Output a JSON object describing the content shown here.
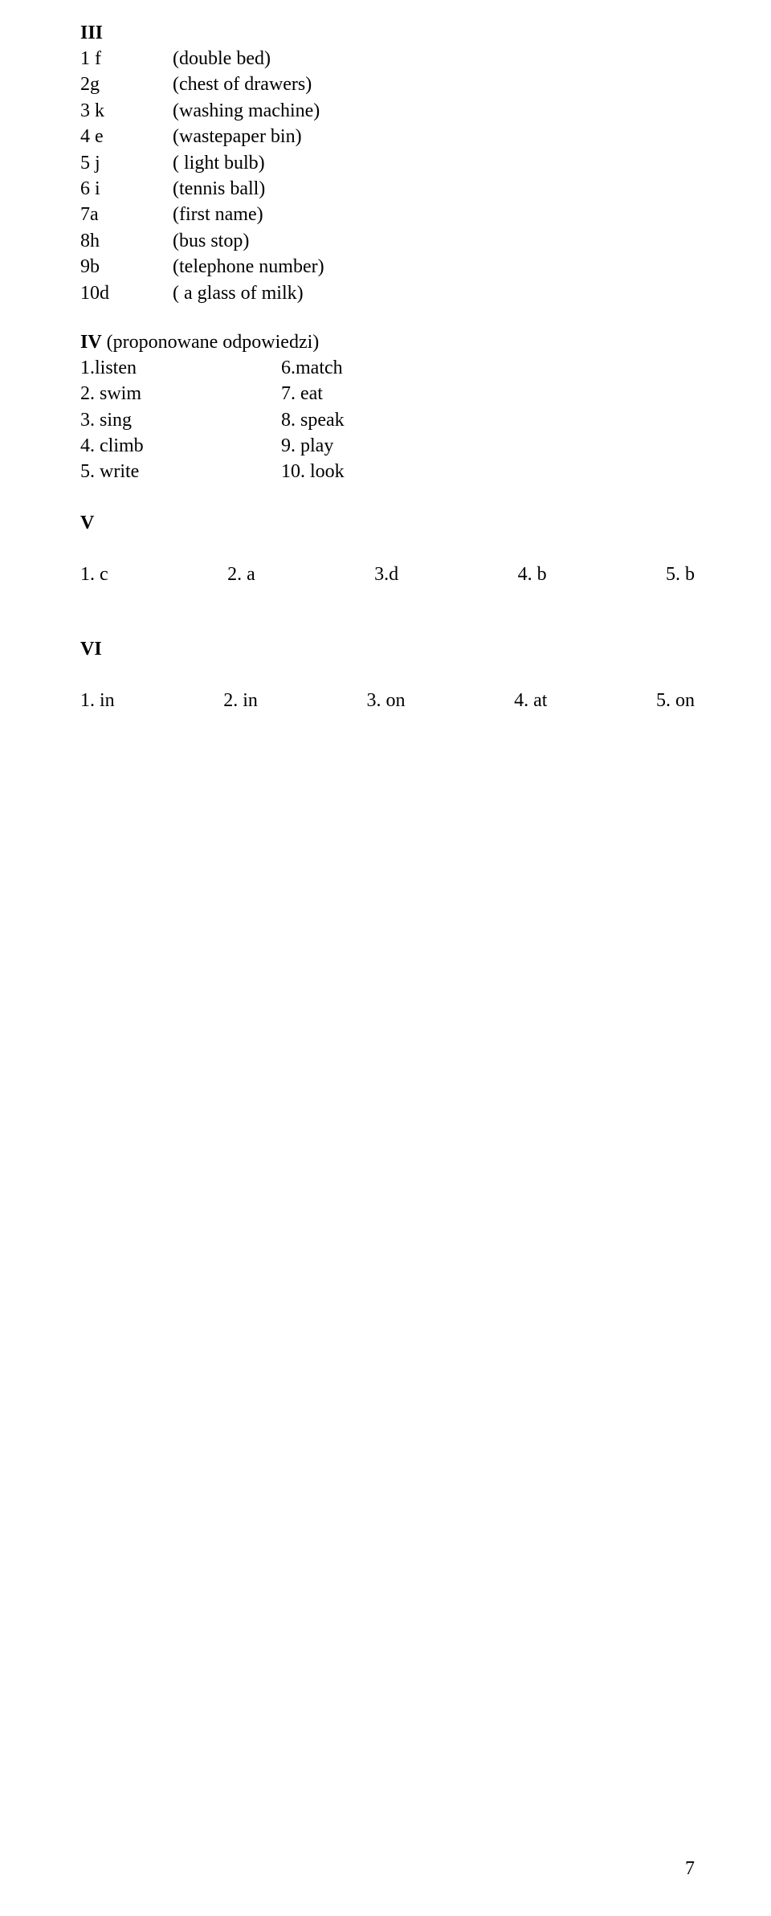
{
  "sectionIII": {
    "header": "III",
    "rows": [
      {
        "key": "1 f",
        "val": "(double bed)"
      },
      {
        "key": "2g",
        "val": "(chest of drawers)"
      },
      {
        "key": "3 k",
        "val": "(washing machine)"
      },
      {
        "key": "4 e",
        "val": "(wastepaper bin)"
      },
      {
        "key": "5 j",
        "val": "( light bulb)"
      },
      {
        "key": "6 i",
        "val": "(tennis ball)"
      },
      {
        "key": "7a",
        "val": "(first name)"
      },
      {
        "key": "8h",
        "val": "(bus stop)"
      },
      {
        "key": "9b",
        "val": "(telephone number)"
      },
      {
        "key": "10d",
        "val": "( a glass of milk)"
      }
    ]
  },
  "sectionIV": {
    "headerBold": "IV",
    "headerRest": "  (proponowane odpowiedzi)",
    "rows": [
      {
        "left": "1.listen",
        "right": "6.match"
      },
      {
        "left": "2. swim",
        "right": "7. eat"
      },
      {
        "left": "3. sing",
        "right": "8. speak"
      },
      {
        "left": "4. climb",
        "right": "9. play"
      },
      {
        "left": "5. write",
        "right": "10. look"
      }
    ]
  },
  "sectionV": {
    "header": "V",
    "items": [
      "1. c",
      "2. a",
      "3.d",
      "4. b",
      "5. b"
    ]
  },
  "sectionVI": {
    "header": "VI",
    "items": [
      "1. in",
      "2. in",
      "3. on",
      "4. at",
      "5. on"
    ]
  },
  "pageNumber": "7"
}
